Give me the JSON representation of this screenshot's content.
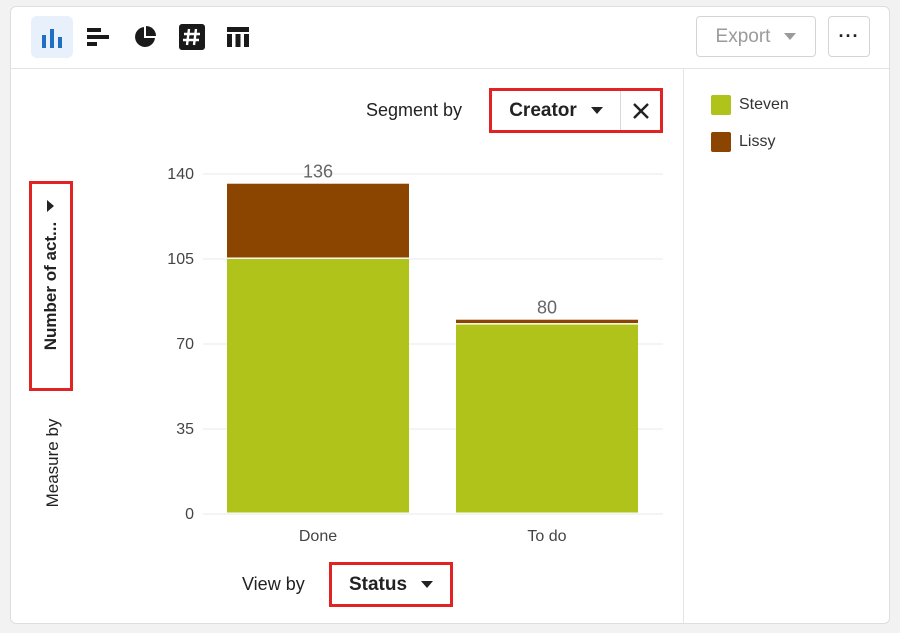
{
  "toolbar": {
    "view_icons": [
      {
        "name": "bar-chart-icon",
        "active": true
      },
      {
        "name": "horizontal-bar-icon",
        "active": false
      },
      {
        "name": "pie-chart-icon",
        "active": false
      },
      {
        "name": "number-icon",
        "active": false
      },
      {
        "name": "table-icon",
        "active": false
      }
    ],
    "export_label": "Export",
    "more_label": "···"
  },
  "controls": {
    "segment_by_label": "Segment by",
    "segment_by_value": "Creator",
    "measure_by_label": "Measure by",
    "measure_by_value": "Number of act...",
    "view_by_label": "View by",
    "view_by_value": "Status"
  },
  "colors": {
    "Steven": "#afc31a",
    "Lissy": "#8b4500",
    "accent": "#1f6fc2",
    "highlight": "#e02424"
  },
  "chart_data": {
    "type": "bar",
    "stacked": true,
    "categories": [
      "Done",
      "To do"
    ],
    "series": [
      {
        "name": "Steven",
        "values": [
          105,
          78
        ]
      },
      {
        "name": "Lissy",
        "values": [
          31,
          2
        ]
      }
    ],
    "totals": [
      "136",
      "80"
    ],
    "yticks": [
      0,
      35,
      70,
      105,
      140
    ],
    "ylim": [
      0,
      140
    ],
    "grid": true,
    "legend": "right"
  }
}
